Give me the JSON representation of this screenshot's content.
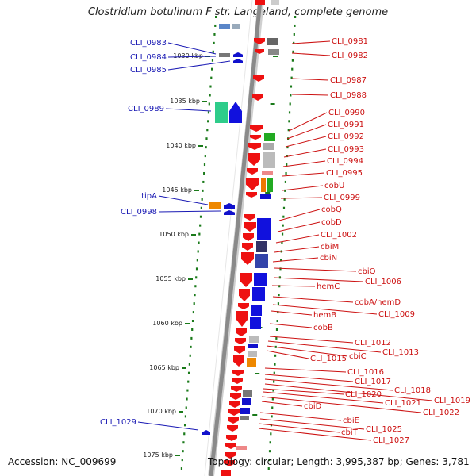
{
  "title": "Clostridium botulinum F str. Langeland, complete genome",
  "accession": "Accession: NC_009699",
  "topology": "Topology: circular; Length: 3,995,387 bp; Genes: 3,781",
  "colors": {
    "left_label": "#1a1ab4",
    "right_label": "#cc1111",
    "ruler": "#1a7a1a"
  },
  "kbp_ticks": [
    "1030 kbp",
    "1035 kbp",
    "1040 kbp",
    "1045 kbp",
    "1050 kbp",
    "1055 kbp",
    "1060 kbp",
    "1065 kbp",
    "1070 kbp",
    "1075 kbp"
  ],
  "left_labels": [
    "CLI_0983",
    "CLI_0984",
    "CLI_0985",
    "CLI_0989",
    "tipA",
    "CLI_0998",
    "CLI_1029"
  ],
  "right_labels": [
    "CLI_0981",
    "CLI_0982",
    "CLI_0987",
    "CLI_0988",
    "CLI_0990",
    "CLI_0991",
    "CLI_0992",
    "CLI_0993",
    "CLI_0994",
    "CLI_0995",
    "cobU",
    "CLI_0999",
    "cobQ",
    "cobD",
    "CLI_1002",
    "cbiM",
    "cbiN",
    "cbiQ",
    "CLI_1006",
    "hemC",
    "cobA/hemD",
    "CLI_1009",
    "hemB",
    "cobB",
    "CLI_1012",
    "CLI_1013",
    "cbiC",
    "CLI_1015",
    "CLI_1016",
    "CLI_1017",
    "CLI_1018",
    "CLI_1019",
    "CLI_1020",
    "CLI_1021",
    "CLI_1022",
    "cbiD",
    "cbiE",
    "CLI_1025",
    "cbiT",
    "CLI_1027"
  ]
}
